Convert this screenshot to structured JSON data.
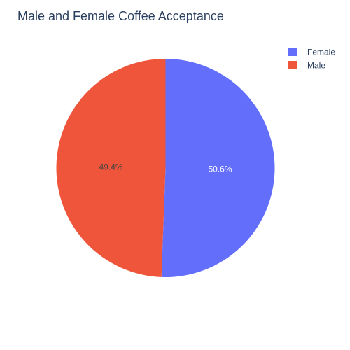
{
  "chart_data": {
    "type": "pie",
    "title": "Male and Female Coffee Acceptance",
    "labels": [
      "Female",
      "Male"
    ],
    "percent_labels": [
      "50.6%",
      "49.4%"
    ],
    "values": [
      50.6,
      49.4
    ],
    "colors": [
      "#636efa",
      "#ef553b"
    ],
    "label_colors": [
      "#ffffff",
      "#444444"
    ],
    "legend_position": "top-right",
    "direction": "clockwise",
    "start": "12 o'clock"
  }
}
